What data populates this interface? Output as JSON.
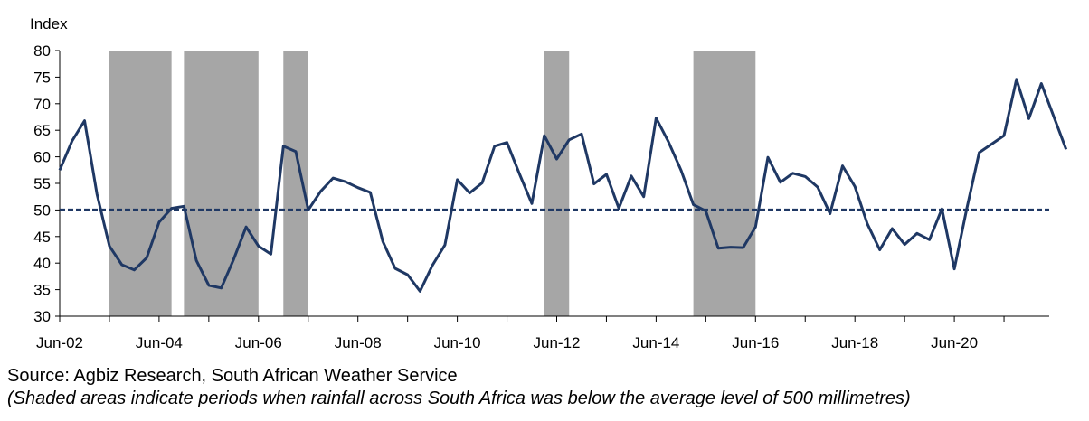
{
  "chart_data": {
    "type": "line",
    "ylabel": "Index",
    "ylim": [
      30,
      80
    ],
    "yticks": [
      30,
      35,
      40,
      45,
      50,
      55,
      60,
      65,
      70,
      75,
      80
    ],
    "xlim": [
      2002.5,
      2022.3
    ],
    "xticks": [
      {
        "label": "Jun-02",
        "value": 2002.5
      },
      {
        "label": "Jun-04",
        "value": 2004.5
      },
      {
        "label": "Jun-06",
        "value": 2006.5
      },
      {
        "label": "Jun-08",
        "value": 2008.5
      },
      {
        "label": "Jun-10",
        "value": 2010.5
      },
      {
        "label": "Jun-12",
        "value": 2012.5
      },
      {
        "label": "Jun-14",
        "value": 2014.5
      },
      {
        "label": "Jun-16",
        "value": 2016.5
      },
      {
        "label": "Jun-18",
        "value": 2018.5
      },
      {
        "label": "Jun-20",
        "value": 2020.5
      }
    ],
    "reference_line": {
      "value": 50,
      "style": "dashed",
      "color": "#1f3864"
    },
    "shaded_periods": [
      {
        "start": 2003.5,
        "end": 2004.75,
        "color": "#a6a6a6"
      },
      {
        "start": 2005.0,
        "end": 2006.5,
        "color": "#a6a6a6"
      },
      {
        "start": 2007.0,
        "end": 2007.5,
        "color": "#a6a6a6"
      },
      {
        "start": 2012.25,
        "end": 2012.75,
        "color": "#a6a6a6"
      },
      {
        "start": 2015.25,
        "end": 2016.5,
        "color": "#a6a6a6"
      }
    ],
    "series": [
      {
        "color": "#1f3864",
        "points": [
          [
            2002.5,
            57.5
          ],
          [
            2002.75,
            63
          ],
          [
            2003.0,
            66.8
          ],
          [
            2003.25,
            53
          ],
          [
            2003.5,
            43.2
          ],
          [
            2003.75,
            39.7
          ],
          [
            2004.0,
            38.7
          ],
          [
            2004.25,
            41
          ],
          [
            2004.5,
            47.7
          ],
          [
            2004.75,
            50.3
          ],
          [
            2005.0,
            50.7
          ],
          [
            2005.25,
            40.5
          ],
          [
            2005.5,
            35.8
          ],
          [
            2005.75,
            35.3
          ],
          [
            2006.0,
            40.7
          ],
          [
            2006.25,
            46.8
          ],
          [
            2006.5,
            43.2
          ],
          [
            2006.75,
            41.7
          ],
          [
            2007.0,
            62
          ],
          [
            2007.25,
            61
          ],
          [
            2007.5,
            50
          ],
          [
            2007.75,
            53.5
          ],
          [
            2008.0,
            56
          ],
          [
            2008.25,
            55.3
          ],
          [
            2008.5,
            54.2
          ],
          [
            2008.75,
            53.3
          ],
          [
            2009.0,
            44.1
          ],
          [
            2009.25,
            39
          ],
          [
            2009.5,
            37.8
          ],
          [
            2009.75,
            34.7
          ],
          [
            2010.0,
            39.6
          ],
          [
            2010.25,
            43.4
          ],
          [
            2010.5,
            55.7
          ],
          [
            2010.75,
            53.2
          ],
          [
            2011.0,
            55.1
          ],
          [
            2011.25,
            62
          ],
          [
            2011.5,
            62.7
          ],
          [
            2011.75,
            56.8
          ],
          [
            2012.0,
            51.2
          ],
          [
            2012.25,
            64
          ],
          [
            2012.5,
            59.6
          ],
          [
            2012.75,
            63.2
          ],
          [
            2013.0,
            64.3
          ],
          [
            2013.25,
            54.9
          ],
          [
            2013.5,
            56.7
          ],
          [
            2013.75,
            50.3
          ],
          [
            2014.0,
            56.4
          ],
          [
            2014.25,
            52.5
          ],
          [
            2014.5,
            67.3
          ],
          [
            2014.75,
            62.8
          ],
          [
            2015.0,
            57.5
          ],
          [
            2015.25,
            51
          ],
          [
            2015.5,
            49.8
          ],
          [
            2015.75,
            42.8
          ],
          [
            2016.0,
            43
          ],
          [
            2016.25,
            42.9
          ],
          [
            2016.5,
            46.8
          ],
          [
            2016.75,
            59.9
          ],
          [
            2017.0,
            55.2
          ],
          [
            2017.25,
            56.9
          ],
          [
            2017.5,
            56.3
          ],
          [
            2017.75,
            54.3
          ],
          [
            2018.0,
            49.3
          ],
          [
            2018.25,
            58.3
          ],
          [
            2018.5,
            54.4
          ],
          [
            2018.75,
            47.4
          ],
          [
            2019.0,
            42.5
          ],
          [
            2019.25,
            46.5
          ],
          [
            2019.5,
            43.5
          ],
          [
            2019.75,
            45.6
          ],
          [
            2020.0,
            44.4
          ],
          [
            2020.25,
            50.2
          ],
          [
            2020.5,
            38.9
          ],
          [
            2020.75,
            50.2
          ],
          [
            2021.0,
            60.8
          ],
          [
            2021.25,
            62.4
          ],
          [
            2021.5,
            64
          ],
          [
            2021.75,
            74.6
          ],
          [
            2022.0,
            67.2
          ],
          [
            2022.25,
            73.8
          ],
          [
            2022.75,
            61.4
          ]
        ]
      }
    ]
  },
  "footer": {
    "source": "Source: Agbiz Research, South African Weather Service",
    "note": "(Shaded areas indicate periods when rainfall across South Africa was below the average level of 500 millimetres)"
  }
}
